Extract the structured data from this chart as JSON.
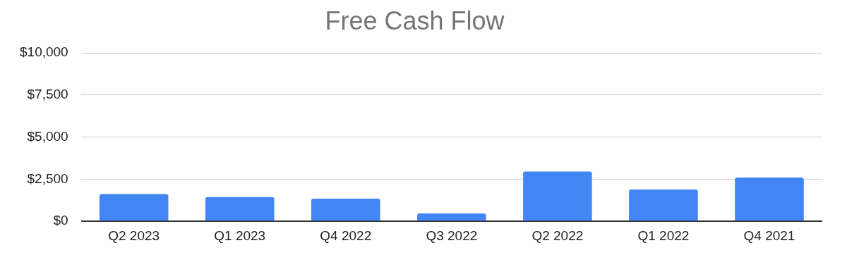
{
  "chart_data": {
    "type": "bar",
    "title": "Free Cash Flow",
    "categories": [
      "Q2 2023",
      "Q1 2023",
      "Q4 2022",
      "Q3 2022",
      "Q2 2022",
      "Q1 2022",
      "Q4 2021"
    ],
    "values": [
      1620,
      1440,
      1350,
      470,
      2960,
      1890,
      2600
    ],
    "color": "#4285f4",
    "ylim": [
      0,
      10000
    ],
    "yticks": [
      {
        "value": 0,
        "label": "$0"
      },
      {
        "value": 2500,
        "label": "$2,500"
      },
      {
        "value": 5000,
        "label": "$5,000"
      },
      {
        "value": 7500,
        "label": "$7,500"
      },
      {
        "value": 10000,
        "label": "$10,000"
      }
    ],
    "grid": "y",
    "legend": false
  }
}
